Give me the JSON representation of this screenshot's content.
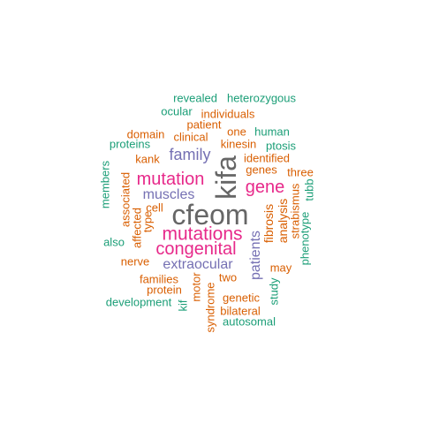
{
  "colors": {
    "orange": "#d95f02",
    "green": "#1b9e77",
    "purple": "#7570b3",
    "magenta": "#e7298a",
    "gray": "#666666"
  },
  "words": [
    {
      "text": "cfeom",
      "color": "gray"
    },
    {
      "text": "kifa",
      "color": "gray"
    },
    {
      "text": "mutations",
      "color": "magenta"
    },
    {
      "text": "mutation",
      "color": "magenta"
    },
    {
      "text": "congenital",
      "color": "magenta"
    },
    {
      "text": "gene",
      "color": "magenta"
    },
    {
      "text": "family",
      "color": "purple"
    },
    {
      "text": "muscles",
      "color": "purple"
    },
    {
      "text": "extraocular",
      "color": "purple"
    },
    {
      "text": "patients",
      "color": "purple"
    },
    {
      "text": "revealed",
      "color": "green"
    },
    {
      "text": "heterozygous",
      "color": "green"
    },
    {
      "text": "ocular",
      "color": "green"
    },
    {
      "text": "individuals",
      "color": "orange"
    },
    {
      "text": "patient",
      "color": "orange"
    },
    {
      "text": "domain",
      "color": "orange"
    },
    {
      "text": "clinical",
      "color": "orange"
    },
    {
      "text": "one",
      "color": "orange"
    },
    {
      "text": "human",
      "color": "green"
    },
    {
      "text": "proteins",
      "color": "green"
    },
    {
      "text": "kinesin",
      "color": "orange"
    },
    {
      "text": "ptosis",
      "color": "green"
    },
    {
      "text": "kank",
      "color": "orange"
    },
    {
      "text": "identified",
      "color": "orange"
    },
    {
      "text": "genes",
      "color": "orange"
    },
    {
      "text": "three",
      "color": "orange"
    },
    {
      "text": "members",
      "color": "green"
    },
    {
      "text": "associated",
      "color": "orange"
    },
    {
      "text": "affected",
      "color": "orange"
    },
    {
      "text": "cell",
      "color": "orange"
    },
    {
      "text": "type",
      "color": "orange"
    },
    {
      "text": "fibrosis",
      "color": "orange"
    },
    {
      "text": "analysis",
      "color": "orange"
    },
    {
      "text": "strabismus",
      "color": "orange"
    },
    {
      "text": "tubb",
      "color": "green"
    },
    {
      "text": "phenotype",
      "color": "green"
    },
    {
      "text": "also",
      "color": "green"
    },
    {
      "text": "nerve",
      "color": "orange"
    },
    {
      "text": "may",
      "color": "orange"
    },
    {
      "text": "two",
      "color": "orange"
    },
    {
      "text": "families",
      "color": "orange"
    },
    {
      "text": "protein",
      "color": "orange"
    },
    {
      "text": "motor",
      "color": "orange"
    },
    {
      "text": "study",
      "color": "green"
    },
    {
      "text": "genetic",
      "color": "orange"
    },
    {
      "text": "development",
      "color": "green"
    },
    {
      "text": "kif",
      "color": "green"
    },
    {
      "text": "syndrome",
      "color": "orange"
    },
    {
      "text": "bilateral",
      "color": "orange"
    },
    {
      "text": "autosomal",
      "color": "green"
    }
  ]
}
